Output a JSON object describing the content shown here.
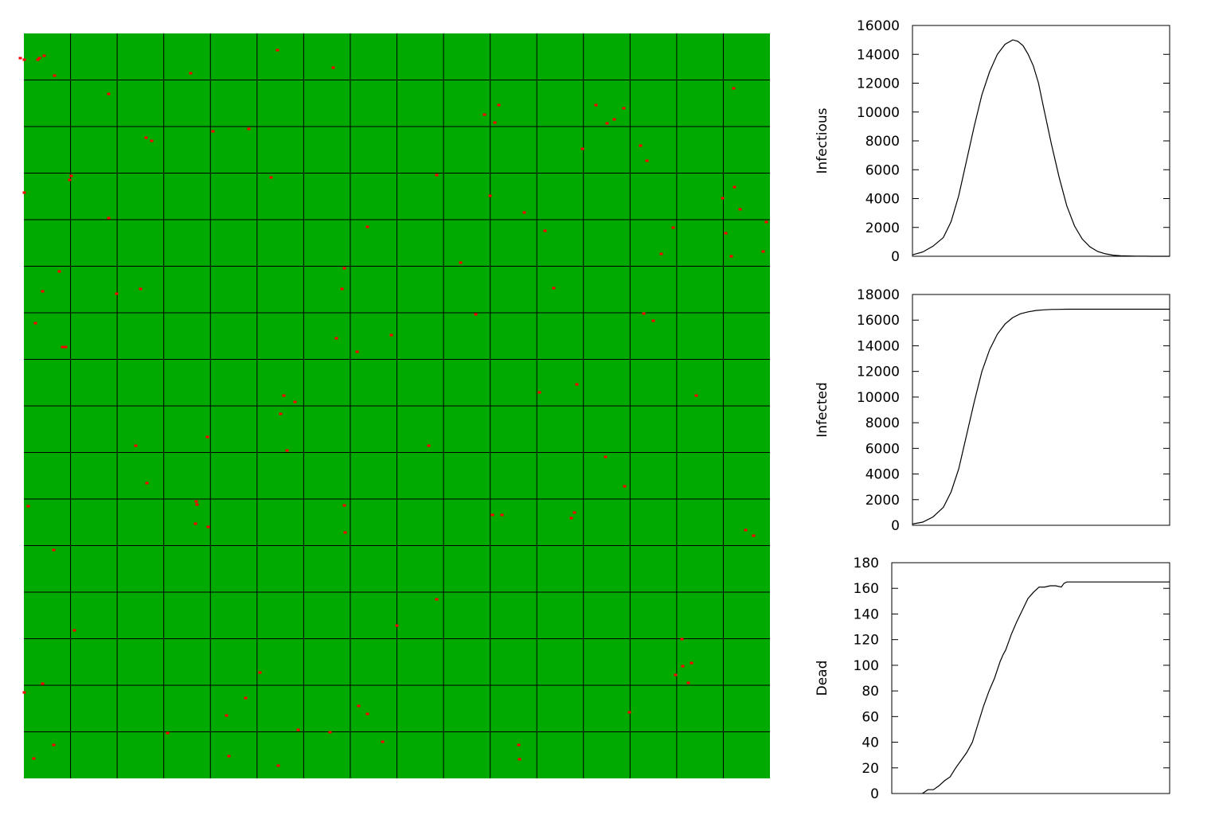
{
  "simulation_grid": {
    "rows": 16,
    "cols": 16,
    "background_color": "#00aa00",
    "grid_line_color": "#000000",
    "infected_color": "#ff0000",
    "infected_cells": [
      [
        25,
        73
      ],
      [
        30,
        75
      ],
      [
        47,
        75
      ],
      [
        49,
        73
      ],
      [
        55,
        70
      ],
      [
        68,
        95
      ],
      [
        136,
        118
      ],
      [
        183,
        173
      ],
      [
        190,
        177
      ],
      [
        239,
        92
      ],
      [
        312,
        162
      ],
      [
        348,
        63
      ],
      [
        418,
        85
      ],
      [
        267,
        165
      ],
      [
        608,
        144
      ],
      [
        626,
        132
      ],
      [
        621,
        154
      ],
      [
        731,
        187
      ],
      [
        748,
        132
      ],
      [
        762,
        155
      ],
      [
        771,
        150
      ],
      [
        783,
        136
      ],
      [
        804,
        183
      ],
      [
        812,
        202
      ],
      [
        921,
        111
      ],
      [
        87,
        226
      ],
      [
        89,
        221
      ],
      [
        30,
        242
      ],
      [
        136,
        274
      ],
      [
        340,
        223
      ],
      [
        548,
        220
      ],
      [
        615,
        246
      ],
      [
        658,
        267
      ],
      [
        684,
        290
      ],
      [
        461,
        285
      ],
      [
        578,
        330
      ],
      [
        830,
        319
      ],
      [
        845,
        286
      ],
      [
        907,
        249
      ],
      [
        922,
        235
      ],
      [
        929,
        263
      ],
      [
        911,
        293
      ],
      [
        918,
        322
      ],
      [
        958,
        316
      ],
      [
        962,
        279
      ],
      [
        74,
        341
      ],
      [
        53,
        366
      ],
      [
        146,
        369
      ],
      [
        176,
        363
      ],
      [
        44,
        406
      ],
      [
        78,
        436
      ],
      [
        82,
        436
      ],
      [
        432,
        337
      ],
      [
        429,
        363
      ],
      [
        422,
        425
      ],
      [
        448,
        442
      ],
      [
        491,
        421
      ],
      [
        597,
        395
      ],
      [
        695,
        362
      ],
      [
        808,
        394
      ],
      [
        820,
        403
      ],
      [
        677,
        493
      ],
      [
        724,
        483
      ],
      [
        874,
        497
      ],
      [
        356,
        497
      ],
      [
        370,
        505
      ],
      [
        352,
        520
      ],
      [
        360,
        566
      ],
      [
        260,
        549
      ],
      [
        170,
        560
      ],
      [
        184,
        607
      ],
      [
        538,
        560
      ],
      [
        760,
        574
      ],
      [
        784,
        611
      ],
      [
        35,
        636
      ],
      [
        67,
        691
      ],
      [
        246,
        630
      ],
      [
        247,
        634
      ],
      [
        245,
        658
      ],
      [
        261,
        662
      ],
      [
        432,
        635
      ],
      [
        433,
        669
      ],
      [
        618,
        647
      ],
      [
        630,
        647
      ],
      [
        721,
        644
      ],
      [
        717,
        651
      ],
      [
        936,
        666
      ],
      [
        946,
        673
      ],
      [
        93,
        792
      ],
      [
        548,
        753
      ],
      [
        498,
        786
      ],
      [
        856,
        803
      ],
      [
        857,
        837
      ],
      [
        868,
        833
      ],
      [
        848,
        848
      ],
      [
        864,
        858
      ],
      [
        53,
        859
      ],
      [
        30,
        870
      ],
      [
        326,
        845
      ],
      [
        308,
        877
      ],
      [
        284,
        899
      ],
      [
        450,
        887
      ],
      [
        461,
        897
      ],
      [
        790,
        895
      ],
      [
        67,
        936
      ],
      [
        42,
        953
      ],
      [
        210,
        921
      ],
      [
        287,
        950
      ],
      [
        349,
        962
      ],
      [
        374,
        917
      ],
      [
        414,
        920
      ],
      [
        480,
        932
      ],
      [
        651,
        936
      ],
      [
        652,
        954
      ]
    ]
  },
  "chart_data": [
    {
      "type": "line",
      "title": "",
      "xlabel": "",
      "ylabel": "Infectious",
      "ylim": [
        0,
        16000
      ],
      "yticks": [
        "0",
        "2000",
        "4000",
        "6000",
        "8000",
        "10000",
        "12000",
        "14000",
        "16000"
      ],
      "xlim": [
        0,
        100
      ],
      "grid": false,
      "series": [
        {
          "x": [
            0,
            4,
            8,
            12,
            15,
            18,
            21,
            24,
            27,
            30,
            33,
            36,
            39,
            41,
            43,
            45,
            47,
            49,
            51,
            54,
            57,
            60,
            63,
            66,
            69,
            72,
            75,
            78,
            81,
            84,
            87,
            90,
            93,
            100
          ],
          "values": [
            100,
            300,
            700,
            1300,
            2400,
            4200,
            6600,
            9000,
            11200,
            12800,
            14000,
            14700,
            15000,
            14900,
            14600,
            14000,
            13200,
            12000,
            10300,
            7800,
            5500,
            3500,
            2100,
            1200,
            650,
            330,
            170,
            80,
            40,
            20,
            10,
            5,
            0,
            0
          ]
        }
      ]
    },
    {
      "type": "line",
      "title": "",
      "xlabel": "",
      "ylabel": "Infected",
      "ylim": [
        0,
        18000
      ],
      "yticks": [
        "0",
        "2000",
        "4000",
        "6000",
        "8000",
        "10000",
        "12000",
        "14000",
        "16000",
        "18000"
      ],
      "xlim": [
        0,
        100
      ],
      "grid": false,
      "series": [
        {
          "x": [
            0,
            4,
            8,
            12,
            15,
            18,
            21,
            24,
            27,
            30,
            33,
            36,
            39,
            42,
            45,
            48,
            51,
            54,
            57,
            60,
            65,
            70,
            80,
            90,
            100
          ],
          "values": [
            100,
            250,
            650,
            1400,
            2600,
            4400,
            7000,
            9600,
            12000,
            13700,
            14900,
            15700,
            16200,
            16500,
            16650,
            16750,
            16800,
            16830,
            16840,
            16850,
            16850,
            16850,
            16850,
            16850,
            16850
          ]
        }
      ]
    },
    {
      "type": "line",
      "title": "",
      "xlabel": "",
      "ylabel": "Dead",
      "ylim": [
        0,
        180
      ],
      "yticks": [
        "0",
        "20",
        "40",
        "60",
        "80",
        "100",
        "120",
        "140",
        "160",
        "180"
      ],
      "xlim": [
        0,
        100
      ],
      "grid": false,
      "series": [
        {
          "x": [
            11,
            13,
            15,
            17,
            19,
            21,
            23,
            25,
            27,
            29,
            31,
            33,
            35,
            37,
            39,
            40,
            41,
            42,
            43,
            45,
            47,
            49,
            51,
            53,
            55,
            57,
            59,
            61,
            62,
            63,
            64,
            70,
            80,
            90,
            100
          ],
          "values": [
            0,
            3,
            3,
            6,
            10,
            13,
            20,
            26,
            32,
            40,
            54,
            68,
            80,
            90,
            103,
            108,
            112,
            118,
            124,
            134,
            143,
            152,
            157,
            161,
            161,
            162,
            162,
            161,
            164,
            165,
            165,
            165,
            165,
            165,
            165
          ]
        }
      ]
    }
  ]
}
